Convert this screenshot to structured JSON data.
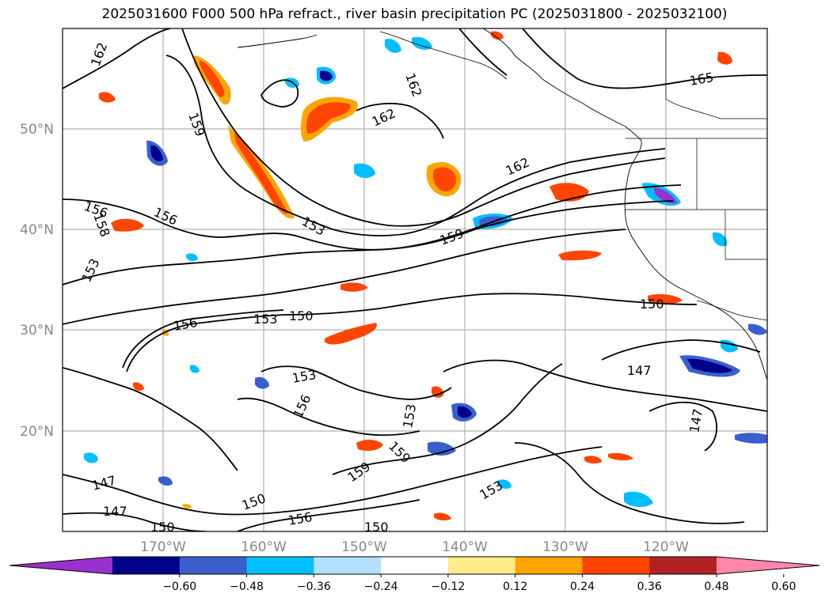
{
  "title": "2025031600 F000 500 hPa refract., river basin precipitation PC (2025031800 - 2025032100)",
  "map": {
    "lon_range": [
      -180,
      -110
    ],
    "lat_range": [
      10,
      60
    ],
    "lat_labels": [
      "50°N",
      "40°N",
      "30°N",
      "20°N"
    ],
    "lon_labels": [
      "170°W",
      "160°W",
      "150°W",
      "140°W",
      "130°W",
      "120°W"
    ],
    "contour_labels": [
      "162",
      "159",
      "162",
      "162",
      "165",
      "162",
      "156",
      "158",
      "156",
      "153",
      "153",
      "159",
      "156",
      "153",
      "150",
      "150",
      "153",
      "156",
      "153",
      "159",
      "159",
      "147",
      "147",
      "150",
      "156",
      "150",
      "153",
      "150",
      "147",
      "147",
      "150"
    ],
    "colorbar": {
      "colors": [
        "#9932cc",
        "#00008b",
        "#3a5fcd",
        "#00bfff",
        "#b0e2ff",
        "#ffffff",
        "#ffec8b",
        "#ffa500",
        "#ff4500",
        "#b22222",
        "#ff88aa"
      ],
      "ticks": [
        "−0.60",
        "−0.48",
        "−0.36",
        "−0.24",
        "−0.12",
        "0.12",
        "0.24",
        "0.36",
        "0.48",
        "0.60"
      ]
    }
  }
}
